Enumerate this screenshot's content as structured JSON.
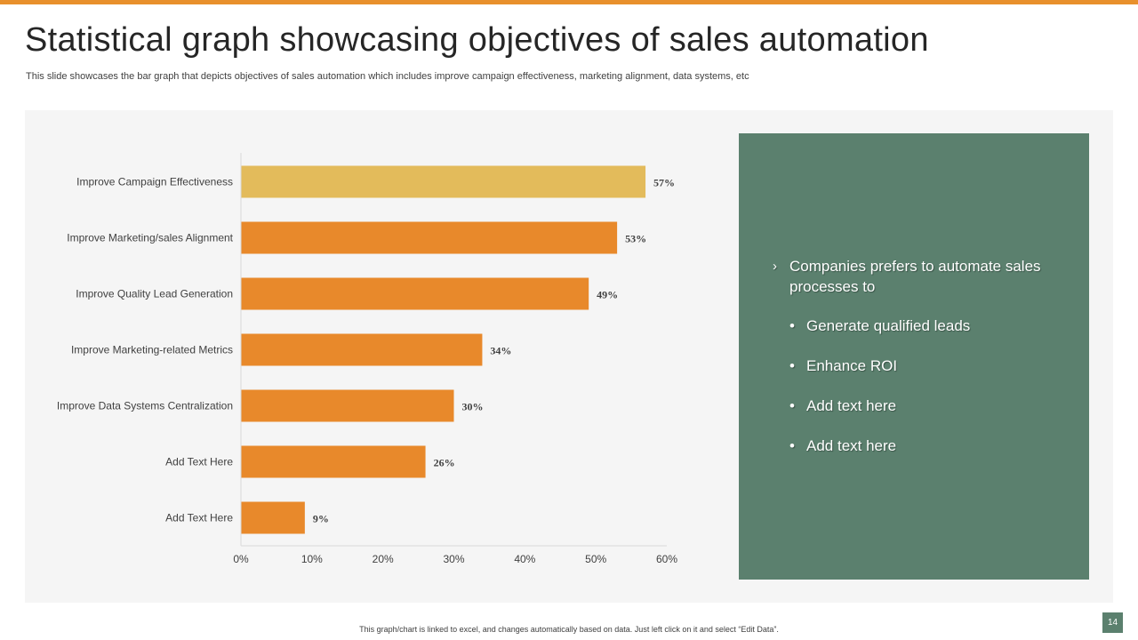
{
  "slide": {
    "title": "Statistical graph showcasing objectives of sales automation",
    "subtitle": "This slide showcases the bar graph that depicts objectives of sales automation which includes improve campaign effectiveness, marketing alignment, data systems, etc",
    "footnote": "This graph/chart is linked to excel, and changes automatically based on data. Just left click on it and select “Edit Data”.",
    "page_number": "14"
  },
  "colors": {
    "accent": "#E8902C",
    "bar": "#E8892B",
    "highlight_bar": "#E3BB5B",
    "panel": "#5B806E"
  },
  "chart_data": {
    "type": "bar",
    "orientation": "horizontal",
    "categories": [
      "Improve Campaign Effectiveness",
      "Improve Marketing/sales Alignment",
      "Improve Quality Lead Generation",
      "Improve Marketing-related Metrics",
      "Improve Data Systems Centralization",
      "Add Text Here",
      "Add Text Here"
    ],
    "values": [
      57,
      53,
      49,
      34,
      30,
      26,
      9
    ],
    "value_labels": [
      "57%",
      "53%",
      "49%",
      "34%",
      "30%",
      "26%",
      "9%"
    ],
    "highlight_index": 0,
    "xlim": [
      0,
      60
    ],
    "xticks": [
      0,
      10,
      20,
      30,
      40,
      50,
      60
    ],
    "xtick_labels": [
      "0%",
      "10%",
      "20%",
      "30%",
      "40%",
      "50%",
      "60%"
    ],
    "title": "",
    "xlabel": "",
    "ylabel": "",
    "grid": false,
    "legend": "none"
  },
  "insight_box": {
    "heading": "Companies prefers to automate sales processes to",
    "heading_icon": "chevron-right-icon",
    "items": [
      "Generate qualified leads",
      "Enhance ROI",
      "Add text here",
      "Add text here"
    ]
  }
}
